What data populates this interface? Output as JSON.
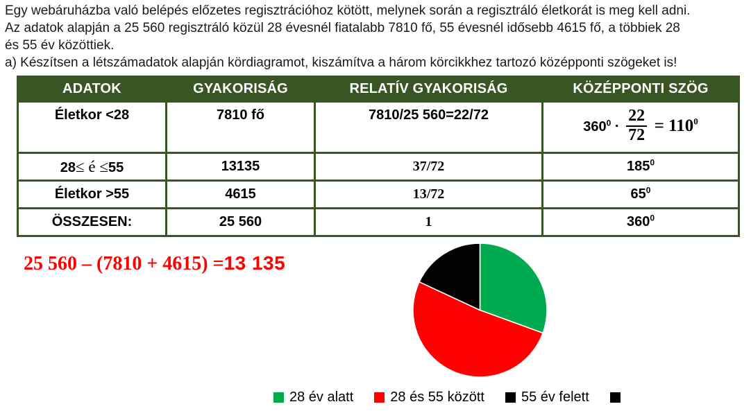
{
  "problem": {
    "lines": [
      "Egy webáruházba való belépés előzetes regisztrációhoz kötött, melynek során a regisztráló életkorát is meg kell adni.",
      "Az adatok alapján a 25 560 regisztráló közül 28 évesnél fiatalabb 7810 fő, 55 évesnél idősebb 4615 fő, a többiek 28",
      "és 55 év közöttiek.",
      "a) Készítsen a létszámadatok alapján kördiagramot, kiszámítva a három körcikkhez tartozó középponti szögeket is!"
    ]
  },
  "table": {
    "headers": [
      "ADATOK",
      "GYAKORISÁG",
      "RELATÍV GYAKORISÁG",
      "KÖZÉPPONTI SZÖG"
    ],
    "rows": [
      {
        "label": "Életkor <28",
        "frequency": "7810 fő",
        "relative": "7810/25 560=22/72",
        "angle_formula": {
          "factor": "360",
          "factor_sup": "0",
          "times": "·",
          "numerator": "22",
          "denominator": "72",
          "equals": "=",
          "result": "110",
          "result_sup": "0"
        }
      },
      {
        "label_a": "28",
        "label_b": "≤ é ≤",
        "label_c": "55",
        "frequency": "13135",
        "relative": "37/72",
        "angle": "185",
        "angle_sup": "0"
      },
      {
        "label": "Életkor >55",
        "frequency": "4615",
        "relative": "13/72",
        "angle": "65",
        "angle_sup": "0"
      },
      {
        "label": "ÖSSZESEN:",
        "frequency": "25 560",
        "relative": "1",
        "angle": "360",
        "angle_sup": "0"
      }
    ]
  },
  "calculation": {
    "expression": "25 560 – (7810 + 4615) =",
    "result": "13 135",
    "color": "#FF0000"
  },
  "chart_data": {
    "type": "pie",
    "title": "",
    "start_angle_deg": 0,
    "direction": "clockwise",
    "radius_px": 97,
    "slices": [
      {
        "label": "28 év alatt",
        "value": 7810,
        "angle_deg": 110,
        "color": "#00AB50"
      },
      {
        "label": "28 és 55 között",
        "value": 13135,
        "angle_deg": 185,
        "color": "#FF0000"
      },
      {
        "label": "55 év felett",
        "value": 4615,
        "angle_deg": 65,
        "color": "#000000"
      }
    ],
    "legend": [
      {
        "label": "28 év alatt",
        "color": "#00AB50"
      },
      {
        "label": "28 és 55 között",
        "color": "#FF0000"
      },
      {
        "label": "55 év felett",
        "color": "#000000"
      },
      {
        "label": "",
        "color": "#000000"
      }
    ],
    "legend_position": "bottom"
  },
  "colors": {
    "table_header_bg": "#375623",
    "table_border": "#375623",
    "highlight_red": "#FF0000",
    "pie_green": "#00AB50",
    "pie_red": "#FF0000",
    "pie_black": "#000000"
  }
}
